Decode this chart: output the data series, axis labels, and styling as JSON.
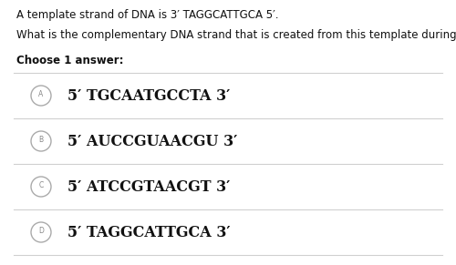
{
  "background_color": "#ffffff",
  "intro_text": "A template strand of DNA is 3′ TAGGCATTGCA 5′.",
  "question_text": "What is the complementary DNA strand that is created from this template during replication?",
  "choose_text": "Choose 1 answer:",
  "options": [
    {
      "label": "A",
      "text": "5′ TGCAATGCCTA 3′"
    },
    {
      "label": "B",
      "text": "5′ AUCCGUAACGU 3′"
    },
    {
      "label": "C",
      "text": "5′ ATCCGTAACGT 3′"
    },
    {
      "label": "D",
      "text": "5′ TAGGCATTGCA 3′"
    }
  ],
  "divider_color": "#d0d0d0",
  "circle_edge_color": "#aaaaaa",
  "circle_letter_color": "#888888",
  "text_color": "#111111",
  "option_text_size": 11.5,
  "intro_text_size": 8.5,
  "question_text_size": 8.5,
  "choose_text_size": 8.5,
  "circle_letter_size": 5.5,
  "figwidth": 5.0,
  "figheight": 2.91,
  "dpi": 100
}
